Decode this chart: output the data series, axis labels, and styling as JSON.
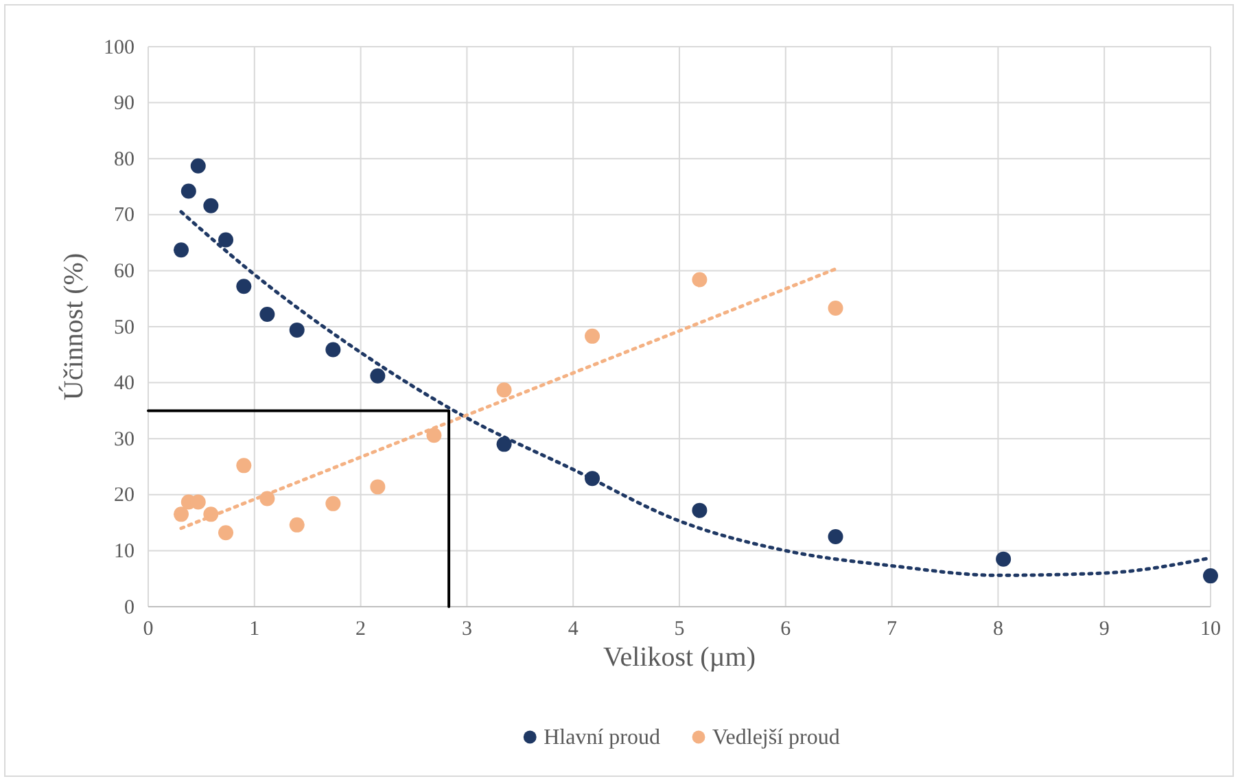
{
  "chart_data": {
    "type": "scatter",
    "xlabel": "Velikost (µm)",
    "ylabel": "Účinnost (%)",
    "xlim": [
      0,
      10
    ],
    "xticks": [
      0,
      1,
      2,
      3,
      4,
      5,
      6,
      7,
      8,
      9,
      10
    ],
    "ylim": [
      0,
      100
    ],
    "yticks": [
      0,
      10,
      20,
      30,
      40,
      50,
      60,
      70,
      80,
      90,
      100
    ],
    "grid": true,
    "legend": "bottom",
    "marker": "circle",
    "series": [
      {
        "name": "Hlavní proud",
        "color": "#1f3864",
        "x": [
          0.31,
          0.38,
          0.47,
          0.59,
          0.73,
          0.9,
          1.12,
          1.4,
          1.74,
          2.16,
          3.35,
          4.18,
          5.19,
          6.47,
          8.05,
          10
        ],
        "values": [
          63.7,
          74.2,
          78.7,
          71.6,
          65.5,
          57.2,
          52.2,
          49.4,
          45.9,
          41.2,
          29,
          22.9,
          17.2,
          12.5,
          8.5,
          5.5
        ]
      },
      {
        "name": "Vedlejší proud",
        "color": "#f4b183",
        "x": [
          0.31,
          0.38,
          0.47,
          0.59,
          0.73,
          0.9,
          1.12,
          1.4,
          1.74,
          2.16,
          2.69,
          3.35,
          4.18,
          5.19,
          6.47
        ],
        "values": [
          16.5,
          18.7,
          18.7,
          16.5,
          13.2,
          25.2,
          19.3,
          14.6,
          18.4,
          21.4,
          30.6,
          38.7,
          48.3,
          58.4,
          53.3
        ]
      },
      {
        "type": "line",
        "color": "#1f3864",
        "line_style": "dotted",
        "marker": "none",
        "x": [
          0.31,
          1,
          2,
          3,
          4,
          5,
          6,
          7,
          8,
          9,
          10
        ],
        "values": [
          70.5,
          59.3,
          45.4,
          33.7,
          24.5,
          15.3,
          10,
          7.3,
          5.6,
          6,
          8.7
        ]
      },
      {
        "type": "line",
        "color": "#f4b183",
        "line_style": "dotted",
        "marker": "none",
        "x": [
          0.31,
          6.47
        ],
        "values": [
          14,
          60.3
        ]
      },
      {
        "type": "line",
        "color": "#000000",
        "line_style": "solid",
        "marker": "none",
        "x": [
          0,
          2.83,
          2.83
        ],
        "values": [
          35,
          35,
          0
        ]
      }
    ]
  }
}
